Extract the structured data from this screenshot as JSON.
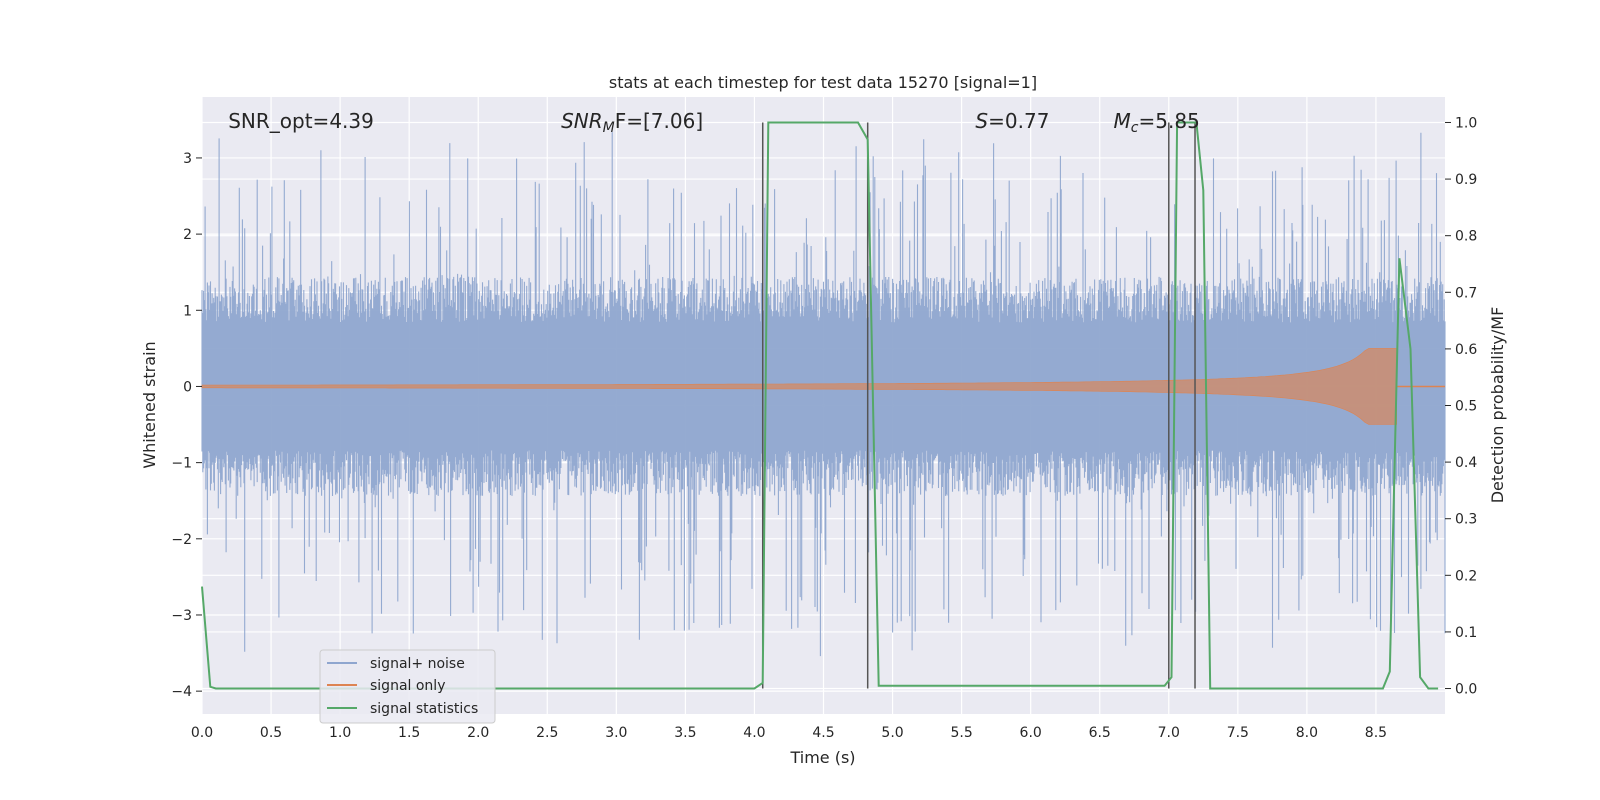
{
  "chart_data": {
    "type": "line",
    "title": "stats at each timestep for test data 15270 [signal=1]",
    "xlabel": "Time (s)",
    "ylabel": "Whitened strain",
    "y2label": "Detection probability/MF",
    "xlim": [
      0,
      9.0
    ],
    "ylim": [
      -4.3,
      3.8
    ],
    "y2lim": [
      -0.045,
      1.045
    ],
    "grid": true,
    "legend_position": "lower-left",
    "x_ticks": [
      "0.0",
      "0.5",
      "1.0",
      "1.5",
      "2.0",
      "2.5",
      "3.0",
      "3.5",
      "4.0",
      "4.5",
      "5.0",
      "5.5",
      "6.0",
      "6.5",
      "7.0",
      "7.5",
      "8.0",
      "8.5"
    ],
    "x_tick_values": [
      0,
      0.5,
      1,
      1.5,
      2,
      2.5,
      3,
      3.5,
      4,
      4.5,
      5,
      5.5,
      6,
      6.5,
      7,
      7.5,
      8,
      8.5
    ],
    "y_ticks": [
      "3",
      "2",
      "1",
      "0",
      "−1",
      "−2",
      "−3",
      "−4"
    ],
    "y_tick_values": [
      3,
      2,
      1,
      0,
      -1,
      -2,
      -3,
      -4
    ],
    "y2_ticks": [
      "1.0",
      "0.9",
      "0.8",
      "0.7",
      "0.6",
      "0.5",
      "0.4",
      "0.3",
      "0.2",
      "0.1",
      "0.0"
    ],
    "y2_tick_values": [
      1.0,
      0.9,
      0.8,
      0.7,
      0.6,
      0.5,
      0.4,
      0.3,
      0.2,
      0.1,
      0.0
    ],
    "annotations": [
      {
        "text": "SNR_opt=4.39",
        "x": 0.19,
        "y": 3.5
      },
      {
        "text": "SNR",
        "sub": "M",
        "suffix": "F=[7.06]",
        "x": 2.6,
        "y": 3.5,
        "italic": true
      },
      {
        "text": "S",
        "suffix": "=0.77",
        "x": 5.6,
        "y": 3.5,
        "italic": true
      },
      {
        "text": "M",
        "sub": "c",
        "suffix": "=5.85",
        "x": 6.6,
        "y": 3.5,
        "italic": true
      }
    ],
    "series": [
      {
        "name": "signal+ noise",
        "color": "#8fa6cf",
        "axis": "left",
        "noise_band": {
          "x_start": 0.0,
          "x_end": 9.0,
          "typical_amplitude": 1.2,
          "peak_max": 3.2,
          "peak_min": -3.4
        }
      },
      {
        "name": "signal only",
        "color": "#dd8452",
        "axis": "left",
        "chirp": {
          "x_start": 0.0,
          "x_merger": 8.65,
          "x_end": 9.0,
          "max_amplitude": 0.5
        }
      },
      {
        "name": "signal statistics",
        "color": "#55a868",
        "axis": "right",
        "x": [
          0.0,
          0.06,
          0.1,
          4.0,
          4.06,
          4.1,
          4.75,
          4.82,
          4.9,
          6.97,
          7.02,
          7.06,
          7.2,
          7.25,
          7.3,
          8.55,
          8.6,
          8.67,
          8.75,
          8.82,
          8.88,
          8.95
        ],
        "values": [
          0.18,
          0.003,
          0.0,
          0.0,
          0.01,
          1.0,
          1.0,
          0.97,
          0.005,
          0.005,
          0.02,
          1.0,
          1.0,
          0.88,
          0.0,
          0.0,
          0.03,
          0.76,
          0.6,
          0.02,
          0.0,
          0.0
        ]
      }
    ],
    "vertical_lines": [
      {
        "x": 4.06,
        "y2_top": 1.0,
        "y2_bottom": 0.0,
        "color": "#555555"
      },
      {
        "x": 4.82,
        "y2_top": 1.0,
        "y2_bottom": 0.0,
        "color": "#555555"
      },
      {
        "x": 7.0,
        "y2_top": 1.0,
        "y2_bottom": 0.0,
        "color": "#555555"
      },
      {
        "x": 7.19,
        "y2_top": 1.0,
        "y2_bottom": 0.0,
        "color": "#555555"
      }
    ]
  }
}
